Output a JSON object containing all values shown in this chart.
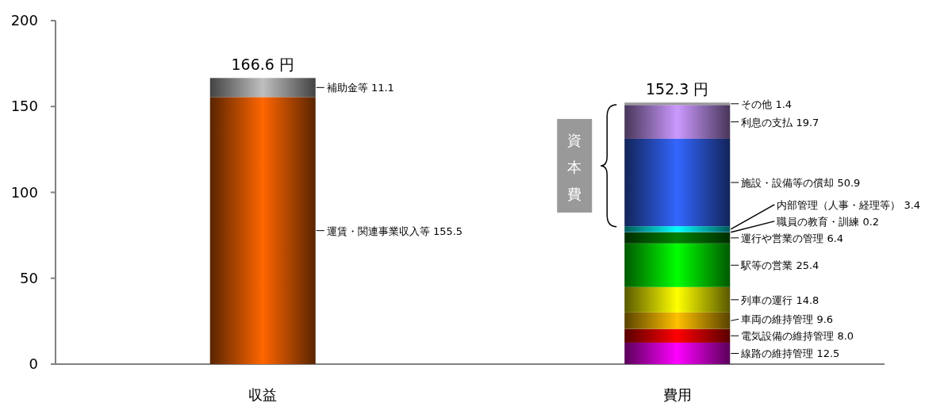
{
  "chart_data": {
    "type": "bar",
    "stacked": true,
    "categories": [
      "収益",
      "費用"
    ],
    "series": [
      {
        "color": "#ff6600",
        "values": [
          155.5,
          null
        ],
        "value_labels": [
          "運賃・関連事業収入等 155.5",
          null
        ]
      },
      {
        "color": "#bfbfbf",
        "values": [
          11.1,
          null
        ],
        "value_labels": [
          "補助金等 11.1",
          null
        ]
      },
      {
        "color": "#ff00ff",
        "values": [
          null,
          12.5
        ],
        "value_labels": [
          null,
          "線路の維持管理 12.5"
        ]
      },
      {
        "color": "#ff0000",
        "values": [
          null,
          8.0
        ],
        "value_labels": [
          null,
          "電気設備の維持管理 8.0"
        ]
      },
      {
        "color": "#ffc000",
        "values": [
          null,
          9.6
        ],
        "value_labels": [
          null,
          "車両の維持管理 9.6"
        ]
      },
      {
        "color": "#ffff00",
        "values": [
          null,
          14.8
        ],
        "value_labels": [
          null,
          "列車の運行 14.8"
        ]
      },
      {
        "color": "#00ff00",
        "values": [
          null,
          25.4
        ],
        "value_labels": [
          null,
          "駅等の営業 25.4"
        ]
      },
      {
        "color": "#008000",
        "values": [
          null,
          6.4
        ],
        "value_labels": [
          null,
          "運行や営業の管理 6.4"
        ]
      },
      {
        "color": "#0070c0",
        "values": [
          null,
          0.2
        ],
        "value_labels": [
          null,
          "職員の教育・訓練 0.2"
        ]
      },
      {
        "color": "#00ffff",
        "values": [
          null,
          3.4
        ],
        "value_labels": [
          null,
          "内部管理（人事・経理等） 3.4"
        ]
      },
      {
        "color": "#3366ff",
        "values": [
          null,
          50.9
        ],
        "value_labels": [
          null,
          "施設・設備等の償却 50.9"
        ]
      },
      {
        "color": "#cc99ff",
        "values": [
          null,
          19.7
        ],
        "value_labels": [
          null,
          "利息の支払 19.7"
        ]
      },
      {
        "color": "#999999",
        "values": [
          null,
          1.4
        ],
        "value_labels": [
          null,
          "その他 1.4"
        ]
      }
    ],
    "totals": [
      "166.6 円",
      "152.3 円"
    ],
    "ylim": [
      0,
      200
    ],
    "yticks": [
      0,
      50,
      100,
      150,
      200
    ],
    "annotations": [
      "資本費"
    ]
  }
}
